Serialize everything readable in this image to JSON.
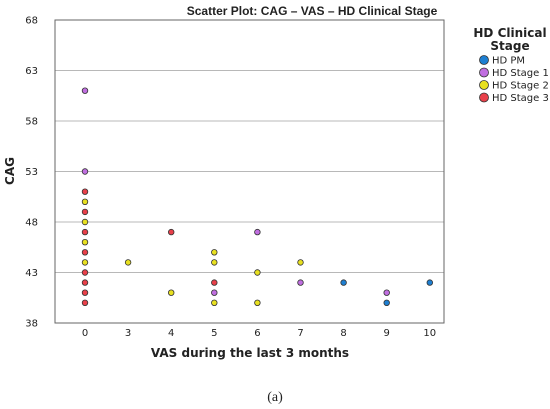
{
  "chart_data": {
    "type": "scatter",
    "title": "Scatter Plot: CAG – VAS – HD Clinical Stage",
    "xlabel": "VAS during the last 3 months",
    "ylabel": "CAG",
    "x_ticks": [
      0,
      3,
      4,
      5,
      6,
      7,
      8,
      9,
      10
    ],
    "y_ticks": [
      38,
      43,
      48,
      53,
      58,
      63,
      68
    ],
    "ylim": [
      38,
      68
    ],
    "grid": "horizontal",
    "legend": {
      "title_line1": "HD Clinical",
      "title_line2": "Stage",
      "placement": "top-right"
    },
    "series": [
      {
        "name": "HD PM",
        "color": "#1e7fd1",
        "points": [
          [
            8,
            42
          ],
          [
            9,
            40
          ],
          [
            10,
            42
          ]
        ]
      },
      {
        "name": "HD Stage 1",
        "color": "#c06ee0",
        "points": [
          [
            0,
            61
          ],
          [
            0,
            53
          ],
          [
            5,
            41
          ],
          [
            6,
            47
          ],
          [
            7,
            42
          ],
          [
            9,
            41
          ]
        ]
      },
      {
        "name": "HD Stage 2",
        "color": "#e8e020",
        "points": [
          [
            0,
            50
          ],
          [
            0,
            48
          ],
          [
            0,
            46
          ],
          [
            0,
            44
          ],
          [
            3,
            44
          ],
          [
            4,
            41
          ],
          [
            5,
            45
          ],
          [
            5,
            44
          ],
          [
            5,
            40
          ],
          [
            6,
            43
          ],
          [
            6,
            40
          ],
          [
            7,
            44
          ]
        ]
      },
      {
        "name": "HD Stage 3",
        "color": "#e8404a",
        "points": [
          [
            0,
            51
          ],
          [
            0,
            49
          ],
          [
            0,
            47
          ],
          [
            0,
            45
          ],
          [
            0,
            43
          ],
          [
            0,
            42
          ],
          [
            0,
            41
          ],
          [
            0,
            40
          ],
          [
            4,
            47
          ],
          [
            5,
            42
          ]
        ]
      }
    ]
  },
  "caption": "(a)"
}
